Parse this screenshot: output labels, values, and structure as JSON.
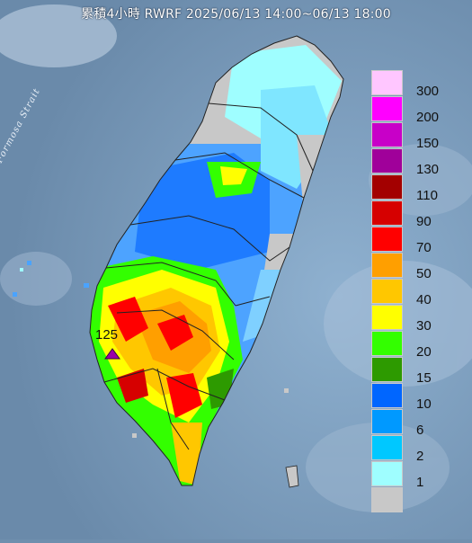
{
  "title": "累積4小時 RWRF 2025/06/13 14:00~06/13 18:00",
  "map": {
    "strait_label": "Formosa Strait",
    "max_marker": {
      "value": "125",
      "color": "#9b00a8"
    }
  },
  "legend": [
    {
      "label": "300",
      "color": "#ffc6ff"
    },
    {
      "label": "200",
      "color": "#ff00ff"
    },
    {
      "label": "150",
      "color": "#c800c8"
    },
    {
      "label": "130",
      "color": "#a0009a"
    },
    {
      "label": "110",
      "color": "#a30000"
    },
    {
      "label": "90",
      "color": "#d60000"
    },
    {
      "label": "70",
      "color": "#ff0000"
    },
    {
      "label": "50",
      "color": "#ff9f00"
    },
    {
      "label": "40",
      "color": "#ffc700"
    },
    {
      "label": "30",
      "color": "#ffff00"
    },
    {
      "label": "20",
      "color": "#33ff00"
    },
    {
      "label": "15",
      "color": "#2d9a00"
    },
    {
      "label": "10",
      "color": "#0066ff"
    },
    {
      "label": "6",
      "color": "#0099ff"
    },
    {
      "label": "2",
      "color": "#00c8ff"
    },
    {
      "label": "1",
      "color": "#9ffeff"
    },
    {
      "label": "",
      "color": "#c8c8c8"
    }
  ]
}
